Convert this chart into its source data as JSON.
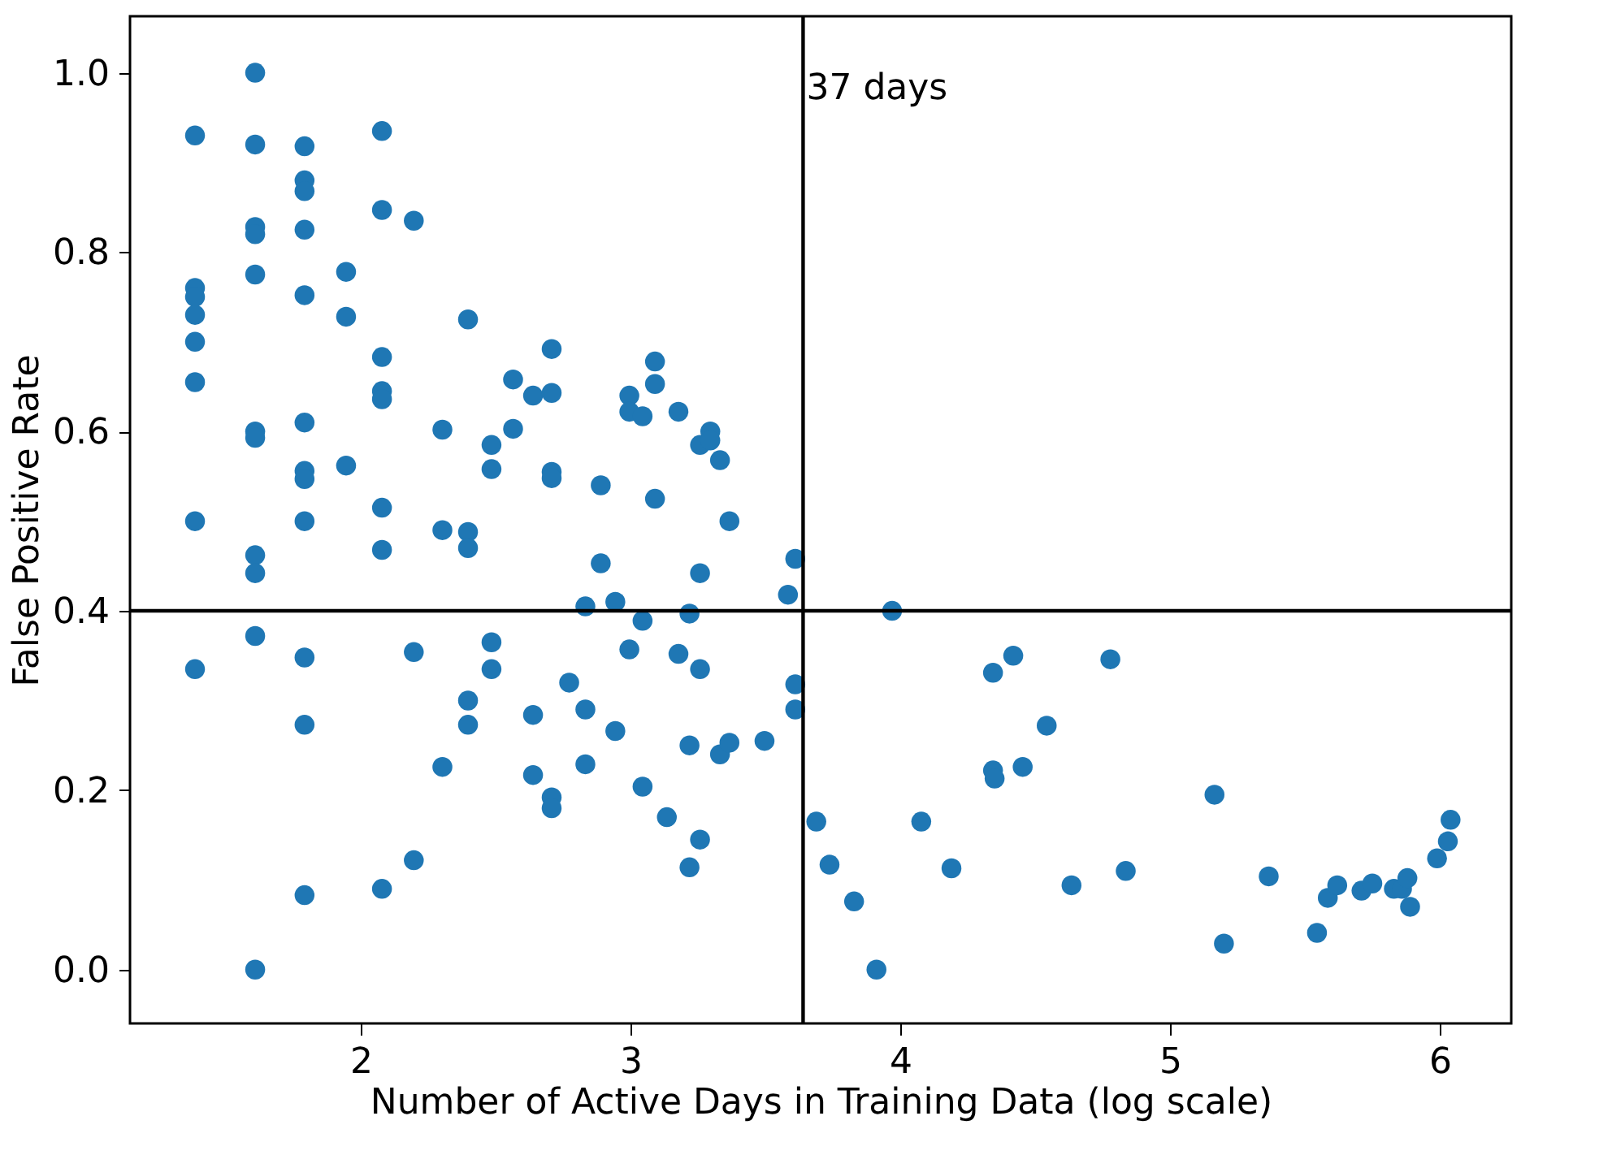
{
  "chart_data": {
    "type": "scatter",
    "xlabel": "Number of Active Days in Training Data (log scale)",
    "ylabel": "False Positive Rate",
    "xlim": [
      1.145,
      6.265
    ],
    "ylim": [
      -0.06,
      1.063
    ],
    "xticks": [
      2,
      3,
      4,
      5,
      6
    ],
    "yticks": [
      {
        "value": 0,
        "label": "0.0"
      },
      0.2,
      0.4,
      0.6,
      0.8,
      {
        "value": 1,
        "label": "1.0"
      }
    ],
    "grid": false,
    "marker": "circle",
    "series": [
      {
        "color": "#1f77b4",
        "x": [
          1.386,
          1.386,
          1.386,
          1.386,
          1.386,
          1.386,
          1.386,
          1.386,
          1.609,
          1.609,
          1.609,
          1.609,
          1.609,
          1.609,
          1.609,
          1.609,
          1.609,
          1.609,
          1.609,
          1.792,
          1.792,
          1.792,
          1.792,
          1.792,
          1.792,
          1.792,
          1.792,
          1.792,
          1.792,
          1.792,
          1.792,
          1.946,
          1.946,
          1.946,
          2.079,
          2.079,
          2.079,
          2.079,
          2.079,
          2.079,
          2.079,
          2.079,
          2.197,
          2.197,
          2.197,
          2.303,
          2.303,
          2.303,
          2.398,
          2.398,
          2.398,
          2.398,
          2.398,
          2.485,
          2.485,
          2.485,
          2.485,
          2.565,
          2.565,
          2.639,
          2.639,
          2.639,
          2.708,
          2.708,
          2.708,
          2.708,
          2.708,
          2.708,
          2.773,
          2.833,
          2.833,
          2.833,
          2.89,
          2.89,
          2.944,
          2.944,
          2.996,
          2.996,
          2.996,
          3.045,
          3.045,
          3.045,
          3.091,
          3.091,
          3.091,
          3.135,
          3.178,
          3.178,
          3.219,
          3.219,
          3.219,
          3.258,
          3.258,
          3.258,
          3.258,
          3.296,
          3.296,
          3.332,
          3.332,
          3.367,
          3.367,
          3.497,
          3.584,
          3.611,
          3.611,
          3.611,
          3.689,
          3.738,
          3.829,
          3.912,
          3.97,
          4.078,
          4.19,
          4.344,
          4.344,
          4.35,
          4.419,
          4.454,
          4.543,
          4.635,
          4.779,
          4.836,
          5.165,
          5.2,
          5.366,
          5.545,
          5.585,
          5.62,
          5.71,
          5.75,
          5.83,
          5.86,
          5.88,
          5.89,
          5.99,
          6.03,
          6.04
        ],
        "values": [
          0.93,
          0.76,
          0.75,
          0.73,
          0.7,
          0.655,
          0.5,
          0.335,
          1.0,
          0.92,
          0.828,
          0.82,
          0.775,
          0.6,
          0.593,
          0.462,
          0.442,
          0.372,
          0.0,
          0.918,
          0.88,
          0.868,
          0.825,
          0.752,
          0.61,
          0.556,
          0.547,
          0.5,
          0.348,
          0.273,
          0.083,
          0.778,
          0.728,
          0.562,
          0.935,
          0.847,
          0.683,
          0.645,
          0.636,
          0.515,
          0.468,
          0.09,
          0.835,
          0.354,
          0.122,
          0.602,
          0.49,
          0.226,
          0.725,
          0.488,
          0.47,
          0.3,
          0.273,
          0.585,
          0.558,
          0.365,
          0.335,
          0.658,
          0.603,
          0.64,
          0.284,
          0.217,
          0.692,
          0.643,
          0.555,
          0.548,
          0.192,
          0.18,
          0.32,
          0.405,
          0.29,
          0.229,
          0.54,
          0.453,
          0.41,
          0.266,
          0.64,
          0.622,
          0.357,
          0.617,
          0.389,
          0.204,
          0.678,
          0.653,
          0.525,
          0.17,
          0.622,
          0.352,
          0.397,
          0.25,
          0.114,
          0.585,
          0.442,
          0.335,
          0.145,
          0.6,
          0.59,
          0.568,
          0.24,
          0.5,
          0.253,
          0.255,
          0.418,
          0.458,
          0.318,
          0.29,
          0.165,
          0.117,
          0.076,
          0.0,
          0.4,
          0.165,
          0.113,
          0.331,
          0.222,
          0.213,
          0.35,
          0.226,
          0.272,
          0.094,
          0.346,
          0.11,
          0.195,
          0.029,
          0.104,
          0.041,
          0.08,
          0.094,
          0.088,
          0.096,
          0.09,
          0.09,
          0.102,
          0.07,
          0.124,
          0.143,
          0.167
        ]
      }
    ],
    "ref_lines": [
      {
        "axis": "x",
        "value": 3.64,
        "label": "37 days",
        "color": "#000000"
      },
      {
        "axis": "y",
        "value": 0.4,
        "color": "#000000"
      }
    ]
  }
}
